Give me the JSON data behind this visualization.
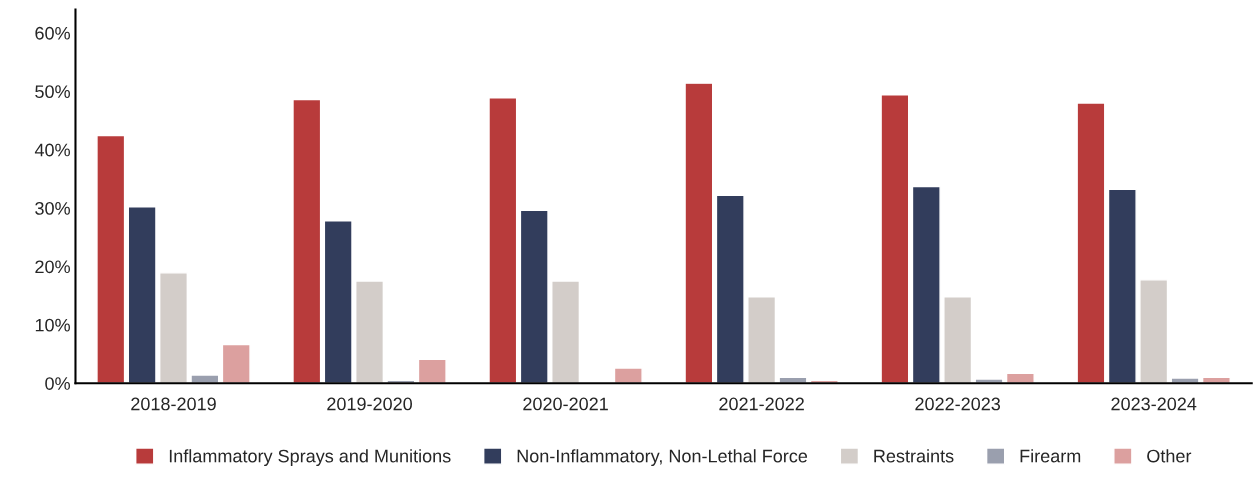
{
  "chart_data": {
    "type": "bar",
    "categories": [
      "2018-2019",
      "2019-2020",
      "2020-2021",
      "2021-2022",
      "2022-2023",
      "2023-2024"
    ],
    "series": [
      {
        "name": "Inflammatory Sprays and Munitions",
        "color": "#b83b3b",
        "values": [
          42.4,
          48.6,
          48.9,
          51.4,
          49.4,
          48.0
        ]
      },
      {
        "name": "Non-Inflammatory, Non-Lethal Force",
        "color": "#323d5c",
        "values": [
          30.2,
          27.8,
          29.6,
          32.2,
          33.7,
          33.2
        ]
      },
      {
        "name": "Restraints",
        "color": "#d3cdc9",
        "values": [
          18.9,
          17.5,
          17.5,
          14.8,
          14.8,
          17.7
        ]
      },
      {
        "name": "Firearm",
        "color": "#9a9fae",
        "values": [
          1.4,
          0.5,
          0.2,
          1.0,
          0.7,
          0.9
        ]
      },
      {
        "name": "Other",
        "color": "#dca09f",
        "values": [
          6.6,
          4.1,
          2.6,
          0.5,
          1.7,
          1.0
        ]
      }
    ],
    "ylim": [
      0,
      64
    ],
    "yticks": [
      {
        "value": 0,
        "label": "0%"
      },
      {
        "value": 10,
        "label": "10%"
      },
      {
        "value": 20,
        "label": "20%"
      },
      {
        "value": 30,
        "label": "30%"
      },
      {
        "value": 40,
        "label": "40%"
      },
      {
        "value": 50,
        "label": "50%"
      },
      {
        "value": 60,
        "label": "60%"
      }
    ],
    "grid": false,
    "legend": "bottom"
  }
}
